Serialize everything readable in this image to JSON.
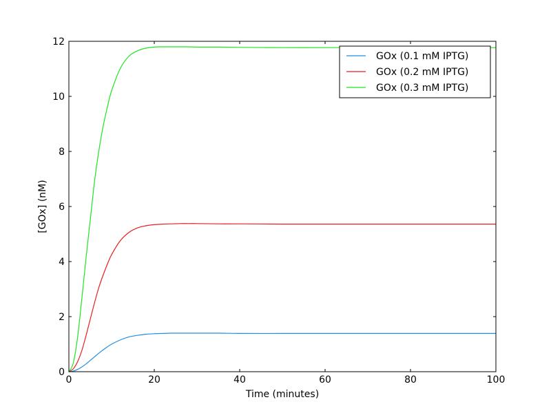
{
  "chart_data": {
    "type": "line",
    "title": "",
    "xlabel": "Time (minutes)",
    "ylabel": "[GOx] (nM)",
    "xlim": [
      0,
      100
    ],
    "ylim": [
      0,
      12
    ],
    "xticks": [
      0,
      20,
      40,
      60,
      80,
      100
    ],
    "yticks": [
      0,
      2,
      4,
      6,
      8,
      10,
      12
    ],
    "grid": false,
    "legend_position": "top-right",
    "x": [
      0,
      1,
      2,
      3,
      4,
      5,
      6,
      7,
      8,
      9,
      10,
      12,
      14,
      16,
      18,
      20,
      22,
      24,
      26,
      28,
      30,
      35,
      40,
      50,
      60,
      70,
      80,
      90,
      100
    ],
    "series": [
      {
        "name": "GOx (0.1 mM IPTG)",
        "color": "#1f8ee6",
        "values": [
          0,
          0.02,
          0.08,
          0.17,
          0.28,
          0.41,
          0.54,
          0.67,
          0.79,
          0.9,
          1.0,
          1.15,
          1.26,
          1.32,
          1.36,
          1.38,
          1.39,
          1.4,
          1.4,
          1.4,
          1.4,
          1.4,
          1.39,
          1.39,
          1.39,
          1.39,
          1.39,
          1.39,
          1.39
        ]
      },
      {
        "name": "GOx (0.2 mM IPTG)",
        "color": "#e51d1d",
        "values": [
          0,
          0.1,
          0.35,
          0.75,
          1.3,
          1.9,
          2.5,
          3.05,
          3.5,
          3.9,
          4.25,
          4.75,
          5.05,
          5.22,
          5.3,
          5.34,
          5.36,
          5.37,
          5.38,
          5.38,
          5.38,
          5.37,
          5.37,
          5.36,
          5.36,
          5.36,
          5.36,
          5.36,
          5.36
        ]
      },
      {
        "name": "GOx (0.3 mM IPTG)",
        "color": "#1ee51e",
        "values": [
          0,
          0.3,
          1.2,
          2.6,
          4.1,
          5.5,
          6.9,
          8.0,
          8.9,
          9.6,
          10.2,
          11.0,
          11.45,
          11.65,
          11.75,
          11.79,
          11.8,
          11.8,
          11.8,
          11.8,
          11.79,
          11.79,
          11.78,
          11.77,
          11.77,
          11.77,
          11.77,
          11.77,
          11.77
        ]
      }
    ]
  }
}
